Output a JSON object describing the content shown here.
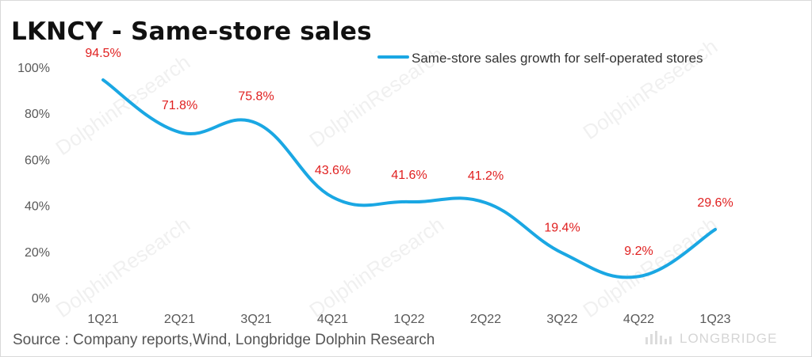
{
  "title": "LKNCY - Same-store sales",
  "source": "Source : Company reports,Wind, Longbridge Dolphin Research",
  "watermark": "DolphinResearch",
  "brand": "LONGBRIDGE",
  "colors": {
    "line": "#1aa7e3",
    "label": "#e02020",
    "axis": "#595959",
    "title": "#111111"
  },
  "chart_data": {
    "type": "line",
    "categories": [
      "1Q21",
      "2Q21",
      "3Q21",
      "4Q21",
      "1Q22",
      "2Q22",
      "3Q22",
      "4Q22",
      "1Q23"
    ],
    "series": [
      {
        "name": "Same-store sales growth for self-operated stores",
        "values": [
          94.5,
          71.8,
          75.8,
          43.6,
          41.6,
          41.2,
          19.4,
          9.2,
          29.6
        ]
      }
    ],
    "data_labels": [
      "94.5%",
      "71.8%",
      "75.8%",
      "43.6%",
      "41.6%",
      "41.2%",
      "19.4%",
      "9.2%",
      "29.6%"
    ],
    "yticks": [
      "0%",
      "20%",
      "40%",
      "60%",
      "80%",
      "100%"
    ],
    "ylim": [
      0,
      100
    ],
    "legend_position": "top-right",
    "grid": false,
    "smooth": true
  }
}
